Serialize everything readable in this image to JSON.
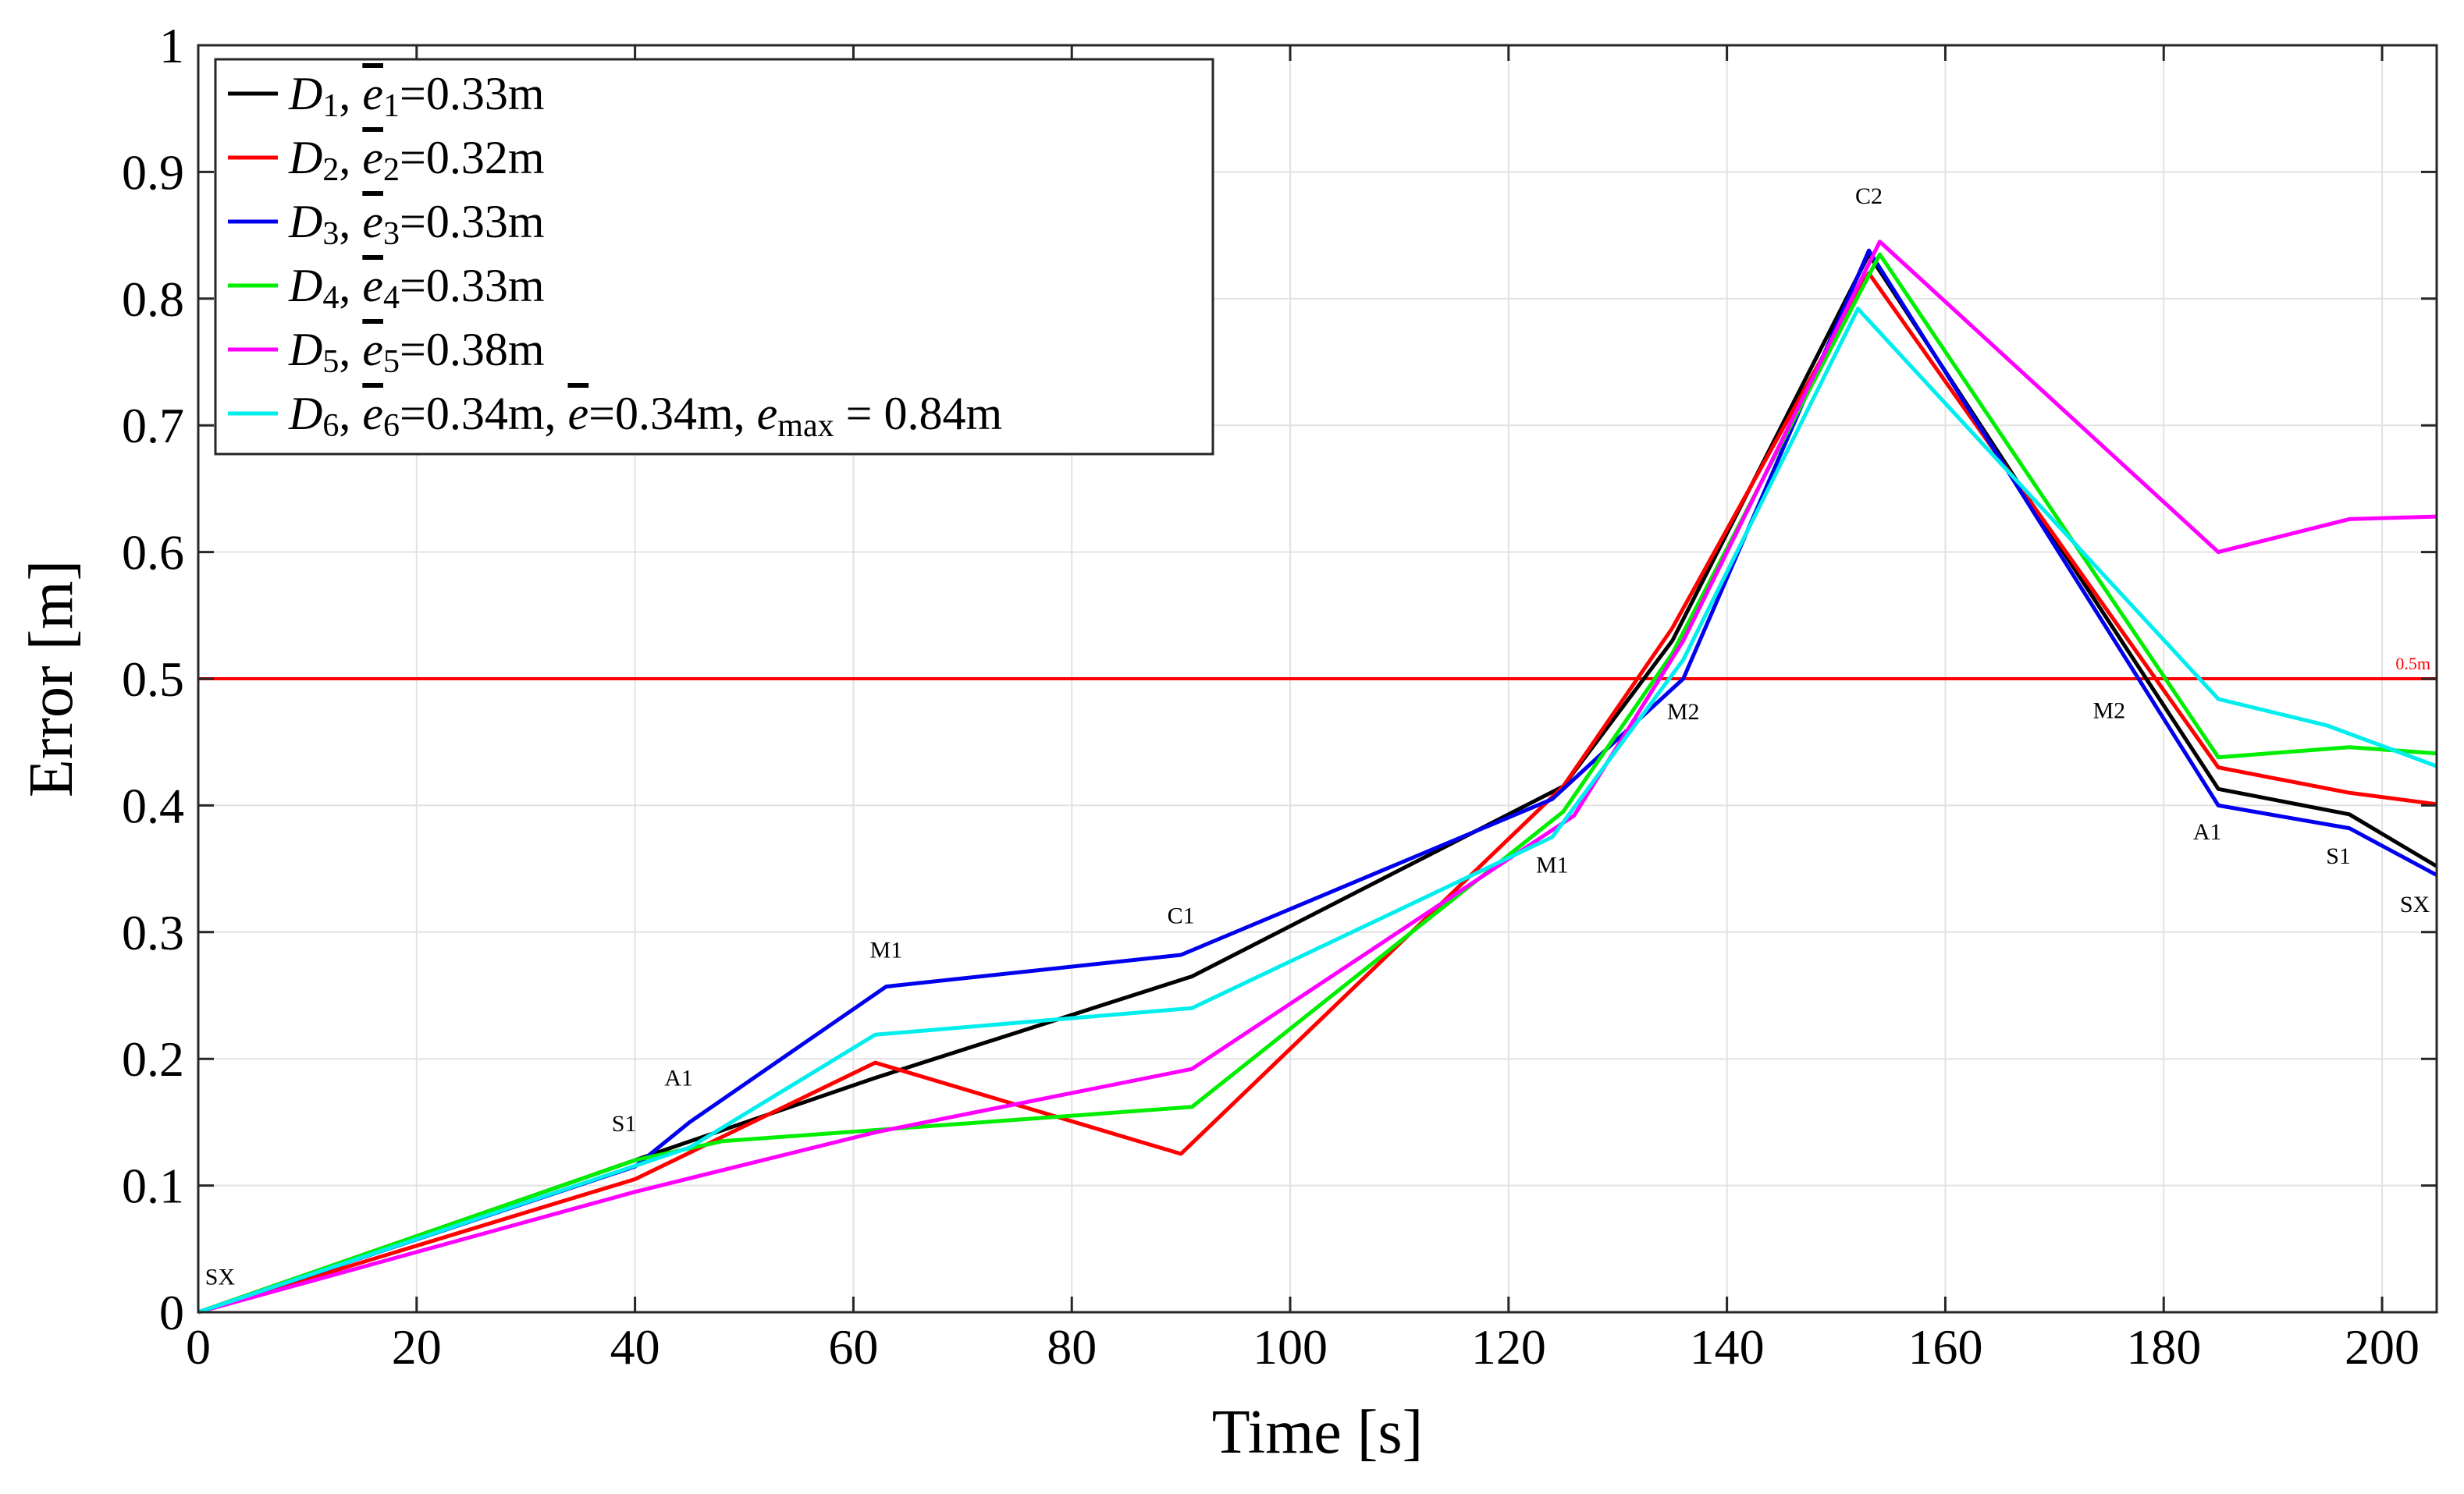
{
  "chart_data": {
    "type": "line",
    "title": "",
    "xlabel": "Time [s]",
    "ylabel": "Error [m]",
    "xlim": [
      0,
      205
    ],
    "ylim": [
      0,
      1
    ],
    "xticks": [
      0,
      20,
      40,
      60,
      80,
      100,
      120,
      140,
      160,
      180,
      200
    ],
    "xtick_labels": [
      "0",
      "20",
      "40",
      "60",
      "80",
      "100",
      "120",
      "140",
      "160",
      "180",
      "200"
    ],
    "yticks": [
      0,
      0.1,
      0.2,
      0.3,
      0.4,
      0.5,
      0.6,
      0.7,
      0.8,
      0.9,
      1
    ],
    "ytick_labels": [
      "0",
      "0.1",
      "0.2",
      "0.3",
      "0.4",
      "0.5",
      "0.6",
      "0.7",
      "0.8",
      "0.9",
      "1"
    ],
    "grid": true,
    "legend_position": "top-left",
    "series": [
      {
        "name": "D1, ē1=0.33m",
        "legend": {
          "sym": "D",
          "sub": "1",
          "bar": "e",
          "barsub": "1",
          "val": "=0.33m"
        },
        "color": "#000000",
        "x": [
          0,
          40,
          62,
          91,
          125,
          135,
          153,
          185,
          197,
          205
        ],
        "y": [
          0,
          0.12,
          0.185,
          0.265,
          0.415,
          0.53,
          0.835,
          0.413,
          0.393,
          0.352
        ]
      },
      {
        "name": "D2, ē2=0.32m",
        "legend": {
          "sym": "D",
          "sub": "2",
          "bar": "e",
          "barsub": "2",
          "val": "=0.32m"
        },
        "color": "#ff0000",
        "x": [
          0,
          40,
          62,
          90,
          125,
          135,
          153,
          185,
          197,
          205
        ],
        "y": [
          0,
          0.105,
          0.197,
          0.125,
          0.415,
          0.54,
          0.82,
          0.43,
          0.41,
          0.401
        ]
      },
      {
        "name": "D3, ē3=0.33m",
        "legend": {
          "sym": "D",
          "sub": "3",
          "bar": "e",
          "barsub": "3",
          "val": "=0.33m"
        },
        "color": "#0000ee",
        "x": [
          0,
          40,
          45,
          63,
          90,
          124,
          136,
          153,
          185,
          197,
          205
        ],
        "y": [
          0,
          0.115,
          0.15,
          0.257,
          0.282,
          0.405,
          0.5,
          0.838,
          0.4,
          0.382,
          0.345
        ]
      },
      {
        "name": "D4, ē4=0.33m",
        "legend": {
          "sym": "D",
          "sub": "4",
          "bar": "e",
          "barsub": "4",
          "val": "=0.33m"
        },
        "color": "#00ee00",
        "x": [
          0,
          40,
          48,
          91,
          125,
          135,
          154,
          185,
          197,
          205
        ],
        "y": [
          0,
          0.12,
          0.135,
          0.162,
          0.395,
          0.52,
          0.835,
          0.438,
          0.446,
          0.441
        ]
      },
      {
        "name": "D5, ē5=0.38m",
        "legend": {
          "sym": "D",
          "sub": "5",
          "bar": "e",
          "barsub": "5",
          "val": "=0.38m"
        },
        "color": "#ff00ff",
        "x": [
          0,
          40,
          62,
          91,
          126,
          136,
          154,
          185,
          197,
          205
        ],
        "y": [
          0,
          0.095,
          0.142,
          0.192,
          0.392,
          0.53,
          0.845,
          0.6,
          0.626,
          0.628
        ]
      },
      {
        "name": "D6, ē6=0.34m, ē=0.34m, emax = 0.84m",
        "legend": {
          "sym": "D",
          "sub": "6",
          "bar": "e",
          "barsub": "6",
          "val": "=0.34m, ",
          "bar2": "e",
          "val2": "=0.34m, ",
          "emax_sym": "e",
          "emax_sub": "max",
          "emax_val": " = 0.84m"
        },
        "color": "#00eeee",
        "x": [
          0,
          45,
          62,
          91,
          124,
          136,
          152,
          185,
          195,
          205
        ],
        "y": [
          0,
          0.13,
          0.219,
          0.24,
          0.375,
          0.515,
          0.792,
          0.484,
          0.463,
          0.431
        ]
      }
    ],
    "reference_line": {
      "y": 0.5,
      "label": "0.5m",
      "color": "#ff0000"
    },
    "annotations": [
      {
        "text": "SX",
        "x": 2,
        "y": 0.022
      },
      {
        "text": "S1",
        "x": 39,
        "y": 0.143
      },
      {
        "text": "A1",
        "x": 44,
        "y": 0.179
      },
      {
        "text": "M1",
        "x": 63,
        "y": 0.28
      },
      {
        "text": "C1",
        "x": 90,
        "y": 0.307
      },
      {
        "text": "M1",
        "x": 124,
        "y": 0.347
      },
      {
        "text": "M2",
        "x": 136,
        "y": 0.468
      },
      {
        "text": "C2",
        "x": 153,
        "y": 0.875
      },
      {
        "text": "M2",
        "x": 175,
        "y": 0.469
      },
      {
        "text": "A1",
        "x": 184,
        "y": 0.373
      },
      {
        "text": "S1",
        "x": 196,
        "y": 0.354
      },
      {
        "text": "SX",
        "x": 203,
        "y": 0.316
      }
    ]
  }
}
